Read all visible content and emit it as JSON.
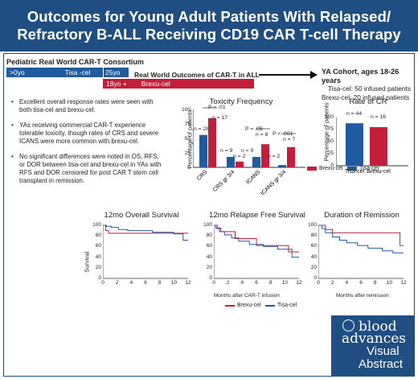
{
  "header": {
    "title_line1": "Outcomes for Young Adult Patients With Relapsed/",
    "title_line2": "Refractory B-ALL Receiving CD19 CAR T-cell Therapy"
  },
  "timeline": {
    "consortium": "Pediatric Real World CAR-T Consortium",
    "age0": ">0yo",
    "tisa": "Tisa -cel",
    "age25": "25yo",
    "rwo": "Real World Outcomes of CAR-T in ALL",
    "age18": "18yo +",
    "brexu": "Brexu-cel"
  },
  "cohort": {
    "title": "YA Cohort, ages 18-26 years",
    "tisa_line": "Tisa-cel: 50 infused patients",
    "brexu_line": "Brexu-cel: 20 infused patients"
  },
  "bullets": [
    "Excellent overall response rates were seen with both tisa-cel and brexu-cel.",
    "YAs receiving commercial CAR-T experience tolerable toxicity, though rates of CRS and severe ICANS were more common with brexu-cel.",
    "No significant differences were noted in OS, RFS, or DOR between tisa-cel and brexu-cel in YAs with RFS and DOR censored for post CAR T stem cell transplant in remission."
  ],
  "colors": {
    "tisa": "#1f5b9e",
    "brexu": "#c41e3a",
    "navy": "#1f4e83"
  },
  "tox": {
    "title": "Toxicity Frequency",
    "ylabel": "Percentage of patients",
    "yticks": [
      "0",
      "25",
      "50",
      "75",
      "100"
    ],
    "legend_brexu": "Brexu-cel",
    "legend_tisa": "Tisa-cel",
    "p1": "P = .01",
    "p2": "P = .05",
    "p3": "P < .001",
    "n1": "n = 28",
    "n2": "n = 17",
    "n3": "n = 9",
    "n4": "n = 2",
    "n5": "n = 9",
    "n6": "n = 8",
    "n7": "n = 2",
    "n8": "n = 7"
  },
  "cr": {
    "title": "Rate of CR",
    "ylabel": "Percentage of patients",
    "yticks": [
      "0",
      "25",
      "50",
      "75",
      "100"
    ],
    "n1": "n = 44",
    "n2": "n = 16"
  },
  "chart_data": [
    {
      "type": "bar",
      "title": "Toxicity Frequency",
      "ylabel": "Percentage of patients",
      "ylim": [
        0,
        100
      ],
      "categories": [
        "CRS",
        "CRS gr 3/4",
        "ICANS",
        "ICANS gr 3/4"
      ],
      "series": [
        {
          "name": "Tisa-cel",
          "values": [
            56,
            18,
            18,
            4
          ]
        },
        {
          "name": "Brexu-cel",
          "values": [
            85,
            10,
            40,
            35
          ]
        }
      ]
    },
    {
      "type": "bar",
      "title": "Rate of CR",
      "ylabel": "Percentage of patients",
      "ylim": [
        0,
        100
      ],
      "categories": [
        "Tisa-cel",
        "Brexu-cel"
      ],
      "values": [
        88,
        80
      ]
    },
    {
      "type": "line",
      "title": "12mo Overall Survival",
      "ylabel": "Survival",
      "ylim": [
        0,
        100
      ],
      "xticks": [
        0,
        2,
        4,
        6,
        8,
        10,
        12
      ],
      "series": [
        {
          "name": "Brexu-cel",
          "x": [
            0,
            0.4,
            0.4,
            0.8,
            0.8,
            12
          ],
          "y": [
            100,
            100,
            90,
            90,
            85,
            85
          ]
        },
        {
          "name": "Tisa-cel",
          "x": [
            0,
            0.5,
            0.5,
            1.2,
            1.2,
            2.2,
            2.2,
            3.5,
            3.5,
            7,
            7,
            10,
            10,
            11.3,
            11.3,
            12
          ],
          "y": [
            100,
            100,
            98,
            98,
            96,
            96,
            92,
            92,
            90,
            90,
            87,
            87,
            84,
            84,
            72,
            72
          ]
        }
      ]
    },
    {
      "type": "line",
      "title": "12mo Relapse Free Survival",
      "ylim": [
        0,
        100
      ],
      "xticks": [
        0,
        2,
        4,
        6,
        8,
        10,
        12
      ],
      "xlabel": "Months after CAR-T infusion",
      "series": [
        {
          "name": "Brexu-cel",
          "x": [
            0,
            0.5,
            0.5,
            1,
            1,
            3,
            3,
            6,
            6,
            10.5,
            10.5,
            12
          ],
          "y": [
            100,
            100,
            95,
            95,
            88,
            88,
            75,
            75,
            62,
            62,
            50,
            50
          ]
        },
        {
          "name": "Tisa-cel",
          "x": [
            0,
            0.3,
            0.3,
            0.8,
            0.8,
            1.5,
            1.5,
            2.5,
            2.5,
            3.5,
            3.5,
            5,
            5,
            7,
            7,
            9,
            9,
            11,
            11,
            12
          ],
          "y": [
            100,
            100,
            94,
            94,
            88,
            88,
            82,
            82,
            76,
            76,
            70,
            70,
            64,
            64,
            60,
            60,
            55,
            55,
            40,
            40
          ]
        }
      ]
    },
    {
      "type": "line",
      "title": "Duration of Remission",
      "ylim": [
        0,
        100
      ],
      "xticks": [
        0,
        2,
        4,
        6,
        8,
        10,
        12
      ],
      "xlabel": "Months after remission",
      "series": [
        {
          "name": "Brexu-cel",
          "x": [
            0,
            1,
            1,
            2,
            2,
            11.5,
            11.5,
            12
          ],
          "y": [
            100,
            100,
            92,
            92,
            86,
            86,
            62,
            62
          ]
        },
        {
          "name": "Tisa-cel",
          "x": [
            0,
            0.5,
            0.5,
            1,
            1,
            2,
            2,
            3,
            3,
            4,
            4,
            5.5,
            5.5,
            7,
            7,
            9,
            9,
            10.5,
            10.5,
            12
          ],
          "y": [
            100,
            100,
            94,
            94,
            86,
            86,
            78,
            78,
            72,
            72,
            67,
            67,
            62,
            62,
            57,
            57,
            52,
            52,
            48,
            48
          ]
        }
      ]
    }
  ],
  "km": {
    "os_title": "12mo Overall Survival",
    "rfs_title": "12mo Relapse Free Survival",
    "dor_title": "Duration of Remission",
    "ylabel": "Survival",
    "yticks": [
      "0",
      "20",
      "40",
      "60",
      "80",
      "100"
    ],
    "xticks": [
      "0",
      "2",
      "4",
      "6",
      "8",
      "10",
      "12"
    ],
    "xlabel_rfs": "Months after CAR-T infusion",
    "xlabel_dor": "Months after remission",
    "legend_brexu": "Brexu-cel",
    "legend_tisa": "Tisa-cel"
  },
  "logo": {
    "l1": "blood",
    "l2": "advances",
    "l3": "Visual",
    "l4": "Abstract"
  }
}
